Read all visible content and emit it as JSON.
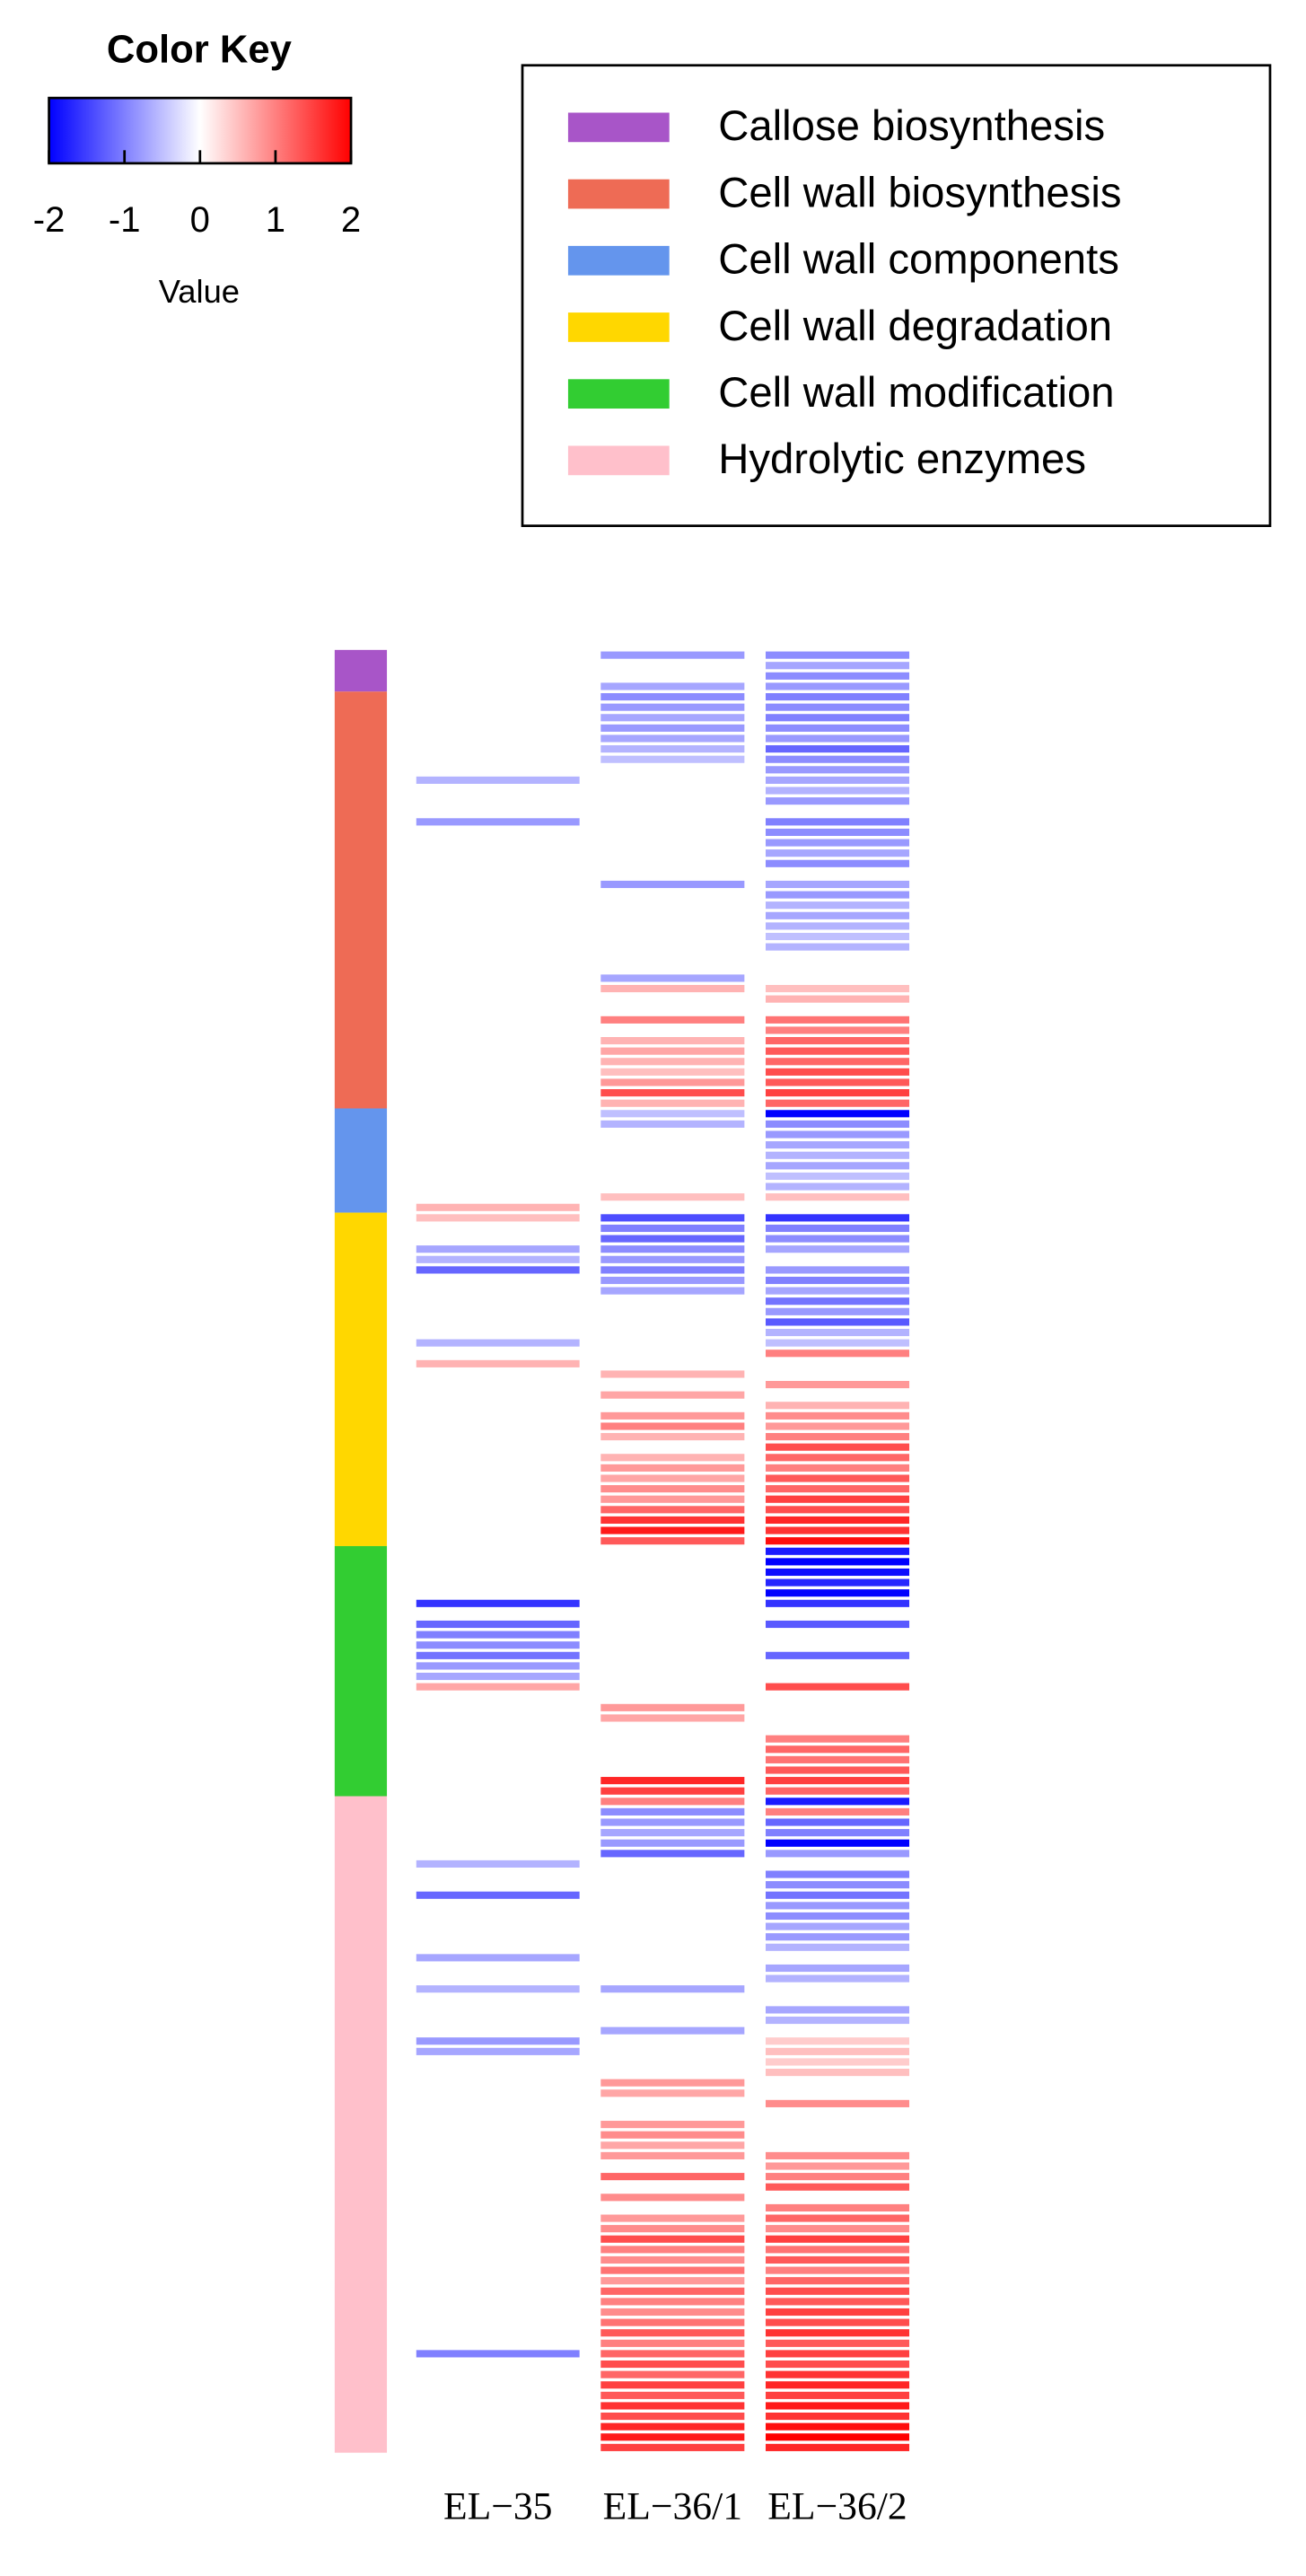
{
  "chart_data": {
    "type": "heatmap",
    "color_key": {
      "title": "Color Key",
      "xlabel": "Value",
      "lim": [
        -2,
        2
      ],
      "ticks": [
        -2,
        -1,
        0,
        1,
        2
      ],
      "low_color": "#0000ff",
      "mid_color": "#ffffff",
      "high_color": "#ff0000"
    },
    "columns": [
      "EL−35",
      "EL−36/1",
      "EL−36/2"
    ],
    "groups": [
      {
        "name": "Callose biosynthesis",
        "color": "#a855c8",
        "rows": [
          [
            0,
            -0.8,
            -0.9
          ],
          [
            0,
            0,
            -0.7
          ],
          [
            0,
            0,
            -0.9
          ],
          [
            0,
            -0.7,
            -0.8
          ]
        ]
      },
      {
        "name": "Cell wall biosynthesis",
        "color": "#ee6b55",
        "rows": [
          [
            0,
            -0.9,
            -1.0
          ],
          [
            0,
            -0.8,
            -0.9
          ],
          [
            0,
            -0.7,
            -1.0
          ],
          [
            0,
            -0.8,
            -0.9
          ],
          [
            0,
            -0.7,
            -0.8
          ],
          [
            0,
            -0.6,
            -1.2
          ],
          [
            0,
            -0.5,
            -0.9
          ],
          [
            0,
            0,
            -0.8
          ],
          [
            -0.6,
            0,
            -0.7
          ],
          [
            0,
            0,
            -0.6
          ],
          [
            0,
            0,
            -0.8
          ],
          [
            0,
            0,
            0
          ],
          [
            -0.8,
            0,
            -1.0
          ],
          [
            0,
            0,
            -0.9
          ],
          [
            0,
            0,
            -0.8
          ],
          [
            0,
            0,
            -0.7
          ],
          [
            0,
            0,
            -0.9
          ],
          [
            0,
            0,
            0
          ],
          [
            0,
            -0.8,
            -0.7
          ],
          [
            0,
            0,
            -0.8
          ],
          [
            0,
            0,
            -0.6
          ],
          [
            0,
            0,
            -0.7
          ],
          [
            0,
            0,
            -0.6
          ],
          [
            0,
            0,
            -0.5
          ],
          [
            0,
            0,
            -0.6
          ],
          [
            0,
            0,
            0
          ],
          [
            0,
            0,
            0
          ],
          [
            0,
            -0.7,
            0
          ],
          [
            0,
            0.6,
            0.5
          ],
          [
            0,
            0,
            0.6
          ],
          [
            0,
            0,
            0
          ],
          [
            0,
            1.0,
            1.1
          ],
          [
            0,
            0,
            1.0
          ],
          [
            0,
            0.6,
            1.2
          ],
          [
            0,
            0.7,
            1.3
          ],
          [
            0,
            0.6,
            1.2
          ],
          [
            0,
            0.5,
            1.4
          ],
          [
            0,
            0.8,
            1.3
          ],
          [
            0,
            1.4,
            1.5
          ],
          [
            0,
            0.6,
            1.2
          ]
        ]
      },
      {
        "name": "Cell wall components",
        "color": "#6495ed",
        "rows": [
          [
            0,
            -0.5,
            -2.0
          ],
          [
            0,
            -0.6,
            -0.9
          ],
          [
            0,
            0,
            -0.8
          ],
          [
            0,
            0,
            -0.7
          ],
          [
            0,
            0,
            -0.6
          ],
          [
            0,
            0,
            -0.7
          ],
          [
            0,
            0,
            -0.5
          ],
          [
            0,
            0,
            -0.6
          ],
          [
            0,
            0.5,
            0.5
          ],
          [
            0.6,
            0,
            0
          ]
        ]
      },
      {
        "name": "Cell wall degradation",
        "color": "#ffd700",
        "rows": [
          [
            0.5,
            -1.4,
            -1.6
          ],
          [
            0,
            -1.0,
            -1.0
          ],
          [
            0,
            -1.2,
            -0.9
          ],
          [
            -0.7,
            -0.9,
            -0.7
          ],
          [
            -0.6,
            -0.8,
            0
          ],
          [
            -1.2,
            -1.0,
            -0.8
          ],
          [
            0,
            -0.8,
            -1.0
          ],
          [
            0,
            -0.7,
            -0.7
          ],
          [
            0,
            0,
            -1.1
          ],
          [
            0,
            0,
            -0.8
          ],
          [
            0,
            0,
            -1.3
          ],
          [
            0,
            0,
            -0.6
          ],
          [
            -0.6,
            0,
            -0.5
          ],
          [
            0,
            0,
            1.0
          ],
          [
            0.6,
            0,
            0
          ],
          [
            0,
            0.6,
            0
          ],
          [
            0,
            0,
            0.8
          ],
          [
            0,
            0.7,
            0
          ],
          [
            0,
            0,
            0.6
          ],
          [
            0,
            0.8,
            0.9
          ],
          [
            0,
            1.0,
            0.8
          ],
          [
            0,
            0.6,
            1.0
          ],
          [
            0,
            0,
            1.4
          ],
          [
            0,
            0.6,
            1.2
          ],
          [
            0,
            0.8,
            1.0
          ],
          [
            0,
            0.7,
            1.3
          ],
          [
            0,
            0.9,
            1.2
          ],
          [
            0,
            0.8,
            1.5
          ],
          [
            0,
            1.2,
            1.4
          ],
          [
            0,
            1.6,
            1.7
          ],
          [
            0,
            1.8,
            1.6
          ],
          [
            0,
            1.3,
            1.9
          ]
        ]
      },
      {
        "name": "Cell wall modification",
        "color": "#32cd32",
        "rows": [
          [
            0,
            0,
            -1.8
          ],
          [
            0,
            0,
            -2.0
          ],
          [
            0,
            0,
            -1.9
          ],
          [
            0,
            0,
            -1.7
          ],
          [
            0,
            0,
            -2.0
          ],
          [
            -1.6,
            0,
            -1.6
          ],
          [
            0,
            0,
            0
          ],
          [
            -1.2,
            0,
            -1.3
          ],
          [
            -1.0,
            0,
            0
          ],
          [
            -0.9,
            0,
            0
          ],
          [
            -1.1,
            0,
            -1.2
          ],
          [
            -0.8,
            0,
            0
          ],
          [
            -0.7,
            0,
            0
          ],
          [
            0.7,
            0,
            1.4
          ],
          [
            0,
            0,
            0
          ],
          [
            0,
            0.8,
            0
          ],
          [
            0,
            0.7,
            0
          ],
          [
            0,
            0,
            0
          ],
          [
            0,
            0,
            1.0
          ],
          [
            0,
            0,
            1.2
          ],
          [
            0,
            0,
            1.1
          ],
          [
            0,
            0,
            1.3
          ],
          [
            0,
            1.7,
            1.5
          ],
          [
            0,
            1.5,
            1.2
          ]
        ]
      },
      {
        "name": "Hydrolytic enzymes",
        "color": "#ffc0cb",
        "rows": [
          [
            0,
            1.0,
            -1.8
          ],
          [
            0,
            -0.9,
            1.0
          ],
          [
            0,
            -0.8,
            -1.2
          ],
          [
            0,
            -0.7,
            -1.0
          ],
          [
            0,
            -0.8,
            -2.0
          ],
          [
            0,
            -1.2,
            -0.8
          ],
          [
            -0.6,
            0,
            0
          ],
          [
            0,
            0,
            -1.0
          ],
          [
            0,
            0,
            -0.9
          ],
          [
            -1.2,
            0,
            -1.1
          ],
          [
            0,
            0,
            -0.8
          ],
          [
            0,
            0,
            -0.9
          ],
          [
            0,
            0,
            -0.7
          ],
          [
            0,
            0,
            -0.8
          ],
          [
            0,
            0,
            -0.6
          ],
          [
            -0.7,
            0,
            0
          ],
          [
            0,
            0,
            -0.7
          ],
          [
            0,
            0,
            -0.6
          ],
          [
            -0.6,
            -0.7,
            0
          ],
          [
            0,
            0,
            0
          ],
          [
            0,
            0,
            -0.7
          ],
          [
            0,
            0,
            -0.6
          ],
          [
            0,
            -0.7,
            0
          ],
          [
            -0.8,
            0,
            0.4
          ],
          [
            -0.7,
            0,
            0.5
          ],
          [
            0,
            0,
            0.4
          ],
          [
            0,
            0,
            0.5
          ],
          [
            0,
            0.8,
            0
          ],
          [
            0,
            0.7,
            0
          ],
          [
            0,
            0,
            0.9
          ],
          [
            0,
            0,
            0
          ],
          [
            0,
            0.8,
            0
          ],
          [
            0,
            0.9,
            0
          ],
          [
            0,
            0.7,
            0
          ],
          [
            0,
            0.8,
            0.9
          ],
          [
            0,
            0,
            0.8
          ],
          [
            0,
            1.2,
            1.0
          ],
          [
            0,
            0,
            1.3
          ],
          [
            0,
            0.9,
            0
          ],
          [
            0,
            0,
            1.0
          ],
          [
            0,
            0.8,
            1.2
          ],
          [
            0,
            0.9,
            0.9
          ],
          [
            0,
            1.4,
            1.5
          ],
          [
            0,
            1.0,
            1.1
          ],
          [
            0,
            0.9,
            1.3
          ],
          [
            0,
            1.1,
            1.0
          ],
          [
            0,
            0.8,
            1.2
          ],
          [
            0,
            1.2,
            1.4
          ],
          [
            0,
            1.0,
            1.3
          ],
          [
            0,
            0.9,
            1.5
          ],
          [
            0,
            1.1,
            1.4
          ],
          [
            0,
            1.3,
            1.6
          ],
          [
            0,
            1.0,
            1.3
          ],
          [
            -1.0,
            1.2,
            1.5
          ],
          [
            0,
            1.4,
            1.4
          ],
          [
            0,
            1.2,
            1.6
          ],
          [
            0,
            1.5,
            1.7
          ],
          [
            0,
            1.3,
            1.5
          ],
          [
            0,
            1.6,
            1.8
          ],
          [
            0,
            1.4,
            1.6
          ],
          [
            0,
            1.7,
            1.9
          ],
          [
            0,
            1.8,
            2.0
          ],
          [
            0,
            1.5,
            1.7
          ]
        ]
      }
    ]
  }
}
